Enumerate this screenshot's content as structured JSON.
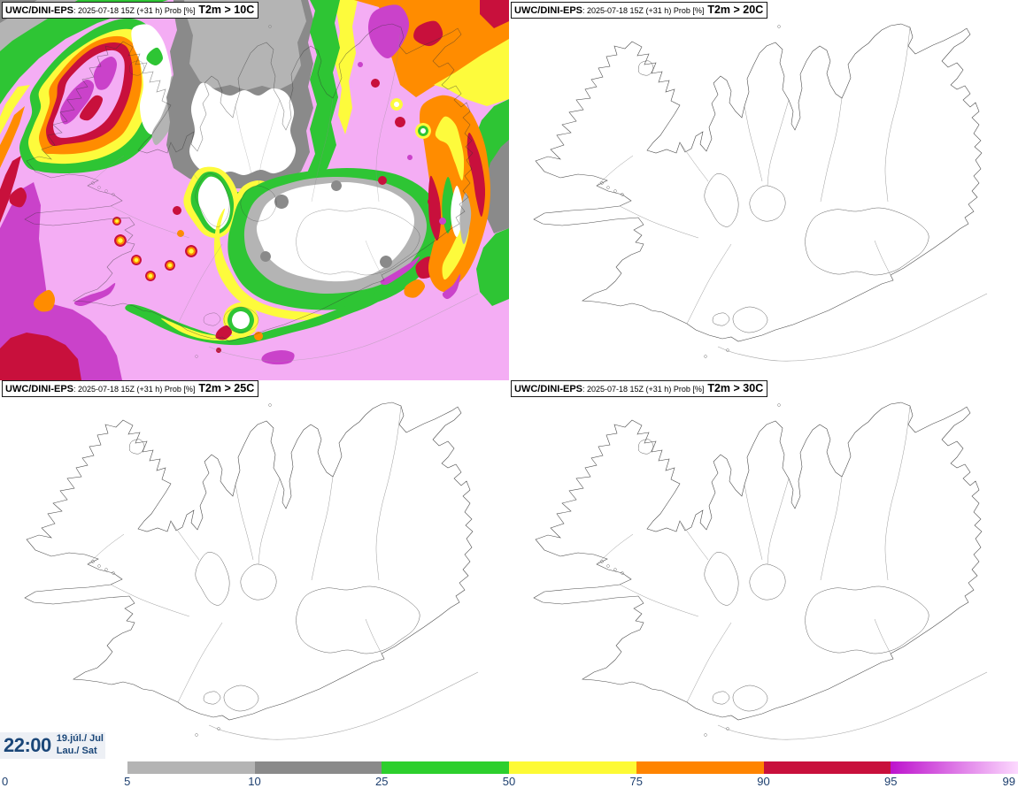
{
  "panels": [
    {
      "model": "UWC/DINI-EPS",
      "run": ": 2025-07-18 15Z (+31 h) Prob [%]",
      "threshold": "T2m > 10C"
    },
    {
      "model": "UWC/DINI-EPS",
      "run": ": 2025-07-18 15Z (+31 h) Prob [%]",
      "threshold": "T2m > 20C"
    },
    {
      "model": "UWC/DINI-EPS",
      "run": ": 2025-07-18 15Z (+31 h) Prob [%]",
      "threshold": "T2m > 25C"
    },
    {
      "model": "UWC/DINI-EPS",
      "run": ": 2025-07-18 15Z (+31 h) Prob [%]",
      "threshold": "T2m > 30C"
    }
  ],
  "timebox": {
    "time": "22:00",
    "date_line1": "19.júl./ Jul",
    "date_line2": "Lau./ Sat"
  },
  "legend": {
    "tick_labels": [
      "0",
      "5",
      "10",
      "25",
      "50",
      "75",
      "90",
      "95",
      "99"
    ],
    "segments": [
      {
        "from": "0",
        "to": "5",
        "color": "#ffffff"
      },
      {
        "from": "5",
        "to": "10",
        "color": "#b4b4b4"
      },
      {
        "from": "10",
        "to": "25",
        "color": "#8a8a8a"
      },
      {
        "from": "25",
        "to": "50",
        "color": "#2dcf2d"
      },
      {
        "from": "50",
        "to": "75",
        "color": "#fdfa35"
      },
      {
        "from": "75",
        "to": "90",
        "color": "#ff8400"
      },
      {
        "from": "90",
        "to": "95",
        "color": "#c8103c"
      },
      {
        "from": "95",
        "to": "99",
        "color": "#bd13cd",
        "color_end": "#fcd9fe"
      }
    ],
    "label_color": "#1c3e6e"
  },
  "map_palette": {
    "prob_ge_99_pink": "#f4adf4",
    "prob_95_99_magenta": "#ca42ca",
    "prob_90_95_crimson": "#c8103c",
    "prob_75_90_orange": "#ff8c00",
    "prob_50_75_yellow": "#fdfb3c",
    "prob_25_50_green": "#2ec534",
    "prob_10_25_darkgray": "#8a8a8a",
    "prob_5_10_lightgray": "#b4b4b4",
    "prob_lt_5_white": "#ffffff"
  }
}
